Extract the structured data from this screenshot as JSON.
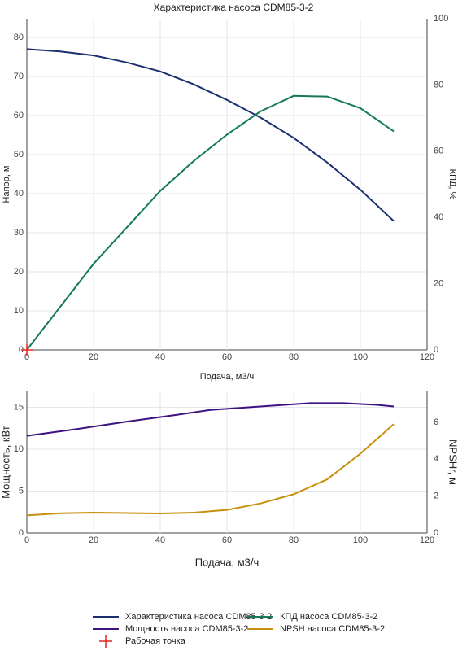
{
  "chart_data": [
    {
      "type": "line",
      "title": "Характеристика насоса CDM85-3-2",
      "xlabel": "Подача, м3/ч",
      "ylabel": "Напор, м",
      "y2label": "КПД, %",
      "xlim": [
        0,
        120
      ],
      "xticks": [
        0,
        20,
        40,
        60,
        80,
        100,
        120
      ],
      "ylim": [
        0,
        84.8
      ],
      "yticks": [
        0,
        10,
        20,
        30,
        40,
        50,
        60,
        70,
        80
      ],
      "y2lim": [
        0,
        100
      ],
      "y2ticks": [
        0,
        20,
        40,
        60,
        80,
        100
      ],
      "grid": true,
      "series": [
        {
          "name": "Характеристика насоса CDM85-3-2",
          "color": "#1b2f6e",
          "x": [
            0,
            10,
            20,
            30,
            40,
            50,
            60,
            70,
            80,
            90,
            100,
            110
          ],
          "values": [
            77,
            76.4,
            75.4,
            73.6,
            71.3,
            68,
            64,
            59.5,
            54.3,
            48,
            41,
            33
          ]
        },
        {
          "name": "КПД насоса CDM85-3-2",
          "color": "#14795a",
          "axis": "y2",
          "x": [
            0,
            10,
            20,
            30,
            40,
            50,
            60,
            70,
            80,
            90,
            100,
            110
          ],
          "values": [
            0,
            13,
            26,
            37,
            48,
            57,
            65,
            72,
            76.7,
            76.5,
            73,
            66
          ]
        },
        {
          "name": "Рабочая точка",
          "color": "#e8231d",
          "marker": "cross",
          "x": [
            0
          ],
          "values": [
            0
          ]
        }
      ]
    },
    {
      "type": "line",
      "xlabel": "Подача, м3/ч",
      "ylabel": "Мощность, кВт",
      "y2label": "NPSHr, м",
      "xlim": [
        0,
        120
      ],
      "xticks": [
        0,
        20,
        40,
        60,
        80,
        100,
        120
      ],
      "ylim": [
        0,
        16.9
      ],
      "yticks": [
        0,
        5,
        10,
        15
      ],
      "y2lim": [
        0,
        7.67
      ],
      "y2ticks": [
        0,
        2,
        4,
        6
      ],
      "grid": true,
      "series": [
        {
          "name": "Мощность насоса CDM85-3-2",
          "color": "#3e1280",
          "x": [
            0,
            15,
            30,
            45,
            55,
            70,
            85,
            95,
            105,
            110
          ],
          "values": [
            11.6,
            12.4,
            13.3,
            14.1,
            14.7,
            15.1,
            15.5,
            15.5,
            15.3,
            15.1
          ]
        },
        {
          "name": "NPSH насоса CDM85-3-2",
          "color": "#c8900f",
          "axis": "y2",
          "x": [
            0,
            10,
            20,
            30,
            40,
            50,
            60,
            70,
            80,
            90,
            100,
            110
          ],
          "values": [
            0.95,
            1.07,
            1.1,
            1.08,
            1.06,
            1.1,
            1.25,
            1.6,
            2.1,
            2.9,
            4.3,
            5.9
          ]
        }
      ]
    }
  ]
}
